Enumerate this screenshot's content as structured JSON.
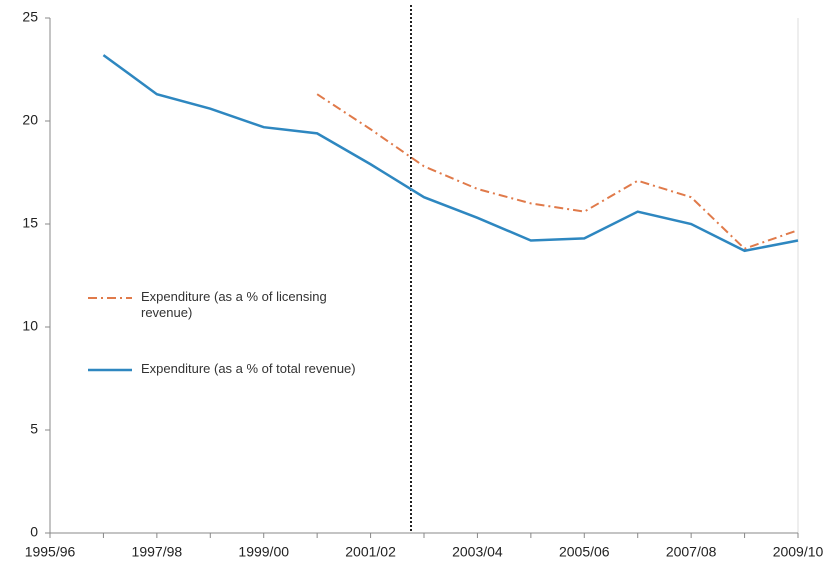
{
  "chart_data": {
    "type": "line",
    "categories": [
      "1995/96",
      null,
      "1997/98",
      null,
      "1999/00",
      null,
      "2001/02",
      null,
      "2003/04",
      null,
      "2005/06",
      null,
      "2007/08",
      null,
      "2009/10"
    ],
    "series": [
      {
        "name": "Expenditure (as a % of licensing revenue)",
        "color": "#e07a4a",
        "dash": "dashdot",
        "values": [
          null,
          null,
          null,
          null,
          null,
          21.3,
          19.6,
          17.8,
          16.7,
          16.0,
          15.6,
          17.1,
          16.3,
          13.8,
          14.7
        ]
      },
      {
        "name": "Expenditure (as a % of total revenue)",
        "color": "#2e87c0",
        "dash": "solid",
        "values": [
          null,
          23.2,
          21.3,
          20.6,
          19.7,
          19.4,
          17.9,
          16.3,
          15.3,
          14.2,
          14.3,
          15.6,
          15.0,
          13.7,
          14.2
        ]
      }
    ],
    "ylim": [
      0,
      25
    ],
    "yticks": [
      0,
      5,
      10,
      15,
      20,
      25
    ],
    "grid": false,
    "legend": "left"
  }
}
